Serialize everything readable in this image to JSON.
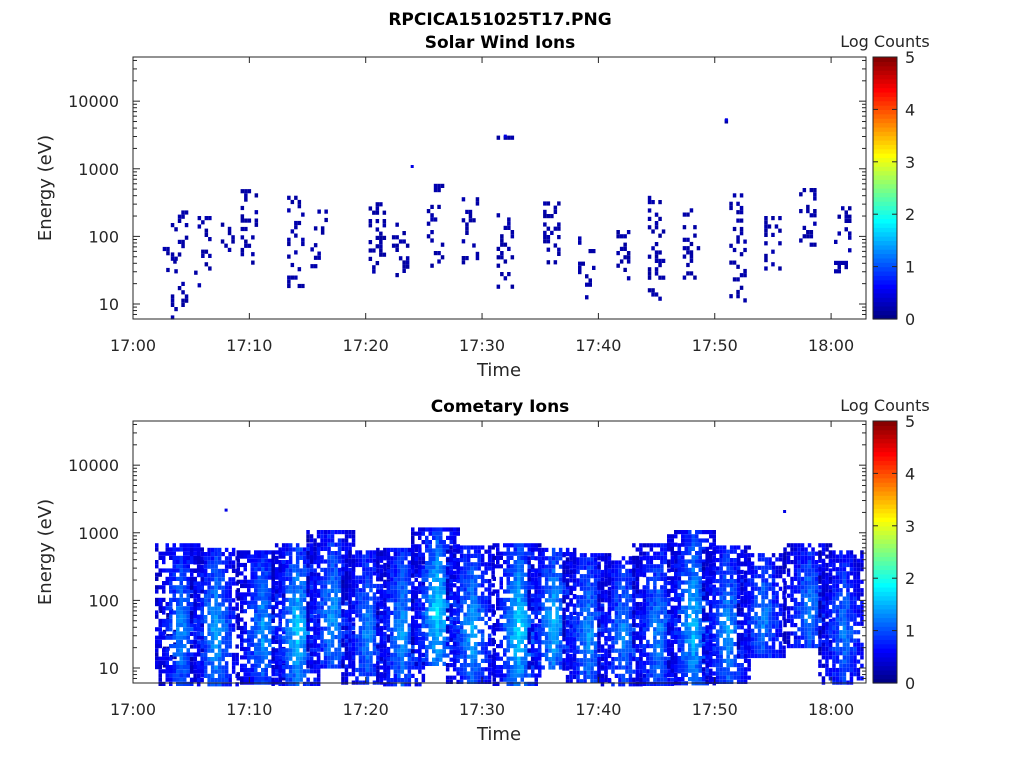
{
  "figure": {
    "title": "RPCICA151025T17.PNG"
  },
  "colormap": "jet",
  "chart_data": [
    {
      "type": "heatmap",
      "title": "Solar Wind Ions",
      "xlabel": "Time",
      "ylabel": "Energy (eV)",
      "y_scale": "log",
      "xlim": [
        "17:00",
        "18:03"
      ],
      "ylim": [
        6,
        45000
      ],
      "x_ticks": [
        "17:00",
        "17:10",
        "17:20",
        "17:30",
        "17:40",
        "17:50",
        "18:00"
      ],
      "y_ticks": [
        "10",
        "100",
        "1000",
        "10000"
      ],
      "colorbar": {
        "label": "Log Counts",
        "range": [
          0,
          5
        ],
        "ticks": [
          "0",
          "1",
          "2",
          "3",
          "4",
          "5"
        ]
      },
      "bursts": [
        {
          "t": "17:03",
          "e_min": 30,
          "e_max": 70,
          "level": 0.2
        },
        {
          "t": "17:04",
          "e_min": 6,
          "e_max": 280,
          "level": 0.3
        },
        {
          "t": "17:06",
          "e_min": 18,
          "e_max": 200,
          "level": 0.3
        },
        {
          "t": "17:08",
          "e_min": 40,
          "e_max": 160,
          "level": 0.2
        },
        {
          "t": "17:10",
          "e_min": 40,
          "e_max": 500,
          "level": 0.4
        },
        {
          "t": "17:14",
          "e_min": 18,
          "e_max": 400,
          "level": 0.5
        },
        {
          "t": "17:16",
          "e_min": 30,
          "e_max": 250,
          "level": 0.3
        },
        {
          "t": "17:21",
          "e_min": 30,
          "e_max": 320,
          "level": 0.2
        },
        {
          "t": "17:23",
          "e_min": 25,
          "e_max": 160,
          "level": 0.2
        },
        {
          "t": "17:24",
          "e_min": 1050,
          "e_max": 1100,
          "level": 0.2
        },
        {
          "t": "17:26",
          "e_min": 35,
          "e_max": 600,
          "level": 0.4
        },
        {
          "t": "17:29",
          "e_min": 40,
          "e_max": 380,
          "level": 0.4
        },
        {
          "t": "17:32",
          "e_min": 18,
          "e_max": 220,
          "level": 0.4
        },
        {
          "t": "17:32",
          "e_min": 3000,
          "e_max": 3100,
          "level": 0.2
        },
        {
          "t": "17:36",
          "e_min": 30,
          "e_max": 380,
          "level": 0.3
        },
        {
          "t": "17:39",
          "e_min": 12,
          "e_max": 100,
          "level": 0.2
        },
        {
          "t": "17:42",
          "e_min": 25,
          "e_max": 220,
          "level": 0.3
        },
        {
          "t": "17:45",
          "e_min": 12,
          "e_max": 460,
          "level": 0.4
        },
        {
          "t": "17:48",
          "e_min": 25,
          "e_max": 300,
          "level": 0.5
        },
        {
          "t": "17:51",
          "e_min": 5200,
          "e_max": 5400,
          "level": 0.2
        },
        {
          "t": "17:52",
          "e_min": 12,
          "e_max": 500,
          "level": 0.3
        },
        {
          "t": "17:55",
          "e_min": 35,
          "e_max": 200,
          "level": 0.3
        },
        {
          "t": "17:58",
          "e_min": 80,
          "e_max": 600,
          "level": 0.3
        },
        {
          "t": "18:01",
          "e_min": 30,
          "e_max": 280,
          "level": 0.3
        }
      ]
    },
    {
      "type": "heatmap",
      "title": "Cometary Ions",
      "xlabel": "Time",
      "ylabel": "Energy (eV)",
      "y_scale": "log",
      "xlim": [
        "17:00",
        "18:03"
      ],
      "ylim": [
        6,
        45000
      ],
      "x_ticks": [
        "17:00",
        "17:10",
        "17:20",
        "17:30",
        "17:40",
        "17:50",
        "18:00"
      ],
      "y_ticks": [
        "10",
        "100",
        "1000",
        "10000"
      ],
      "colorbar": {
        "label": "Log Counts",
        "range": [
          0,
          5
        ],
        "ticks": [
          "0",
          "1",
          "2",
          "3",
          "4",
          "5"
        ]
      },
      "bursts": [
        {
          "t": "17:03",
          "e_min": 10,
          "e_max": 100,
          "level": 0.2
        },
        {
          "t": "17:04",
          "e_min": 6,
          "e_max": 700,
          "level": 1.0
        },
        {
          "t": "17:07",
          "e_min": 6,
          "e_max": 600,
          "level": 1.2
        },
        {
          "t": "17:08",
          "e_min": 2100,
          "e_max": 2200,
          "level": 0.2
        },
        {
          "t": "17:11",
          "e_min": 6,
          "e_max": 550,
          "level": 1.1
        },
        {
          "t": "17:14",
          "e_min": 6,
          "e_max": 700,
          "level": 1.4
        },
        {
          "t": "17:17",
          "e_min": 10,
          "e_max": 1100,
          "level": 1.1
        },
        {
          "t": "17:20",
          "e_min": 6,
          "e_max": 550,
          "level": 1.0
        },
        {
          "t": "17:23",
          "e_min": 6,
          "e_max": 600,
          "level": 1.1
        },
        {
          "t": "17:26",
          "e_min": 12,
          "e_max": 1200,
          "level": 1.5
        },
        {
          "t": "17:29",
          "e_min": 6,
          "e_max": 650,
          "level": 1.2
        },
        {
          "t": "17:33",
          "e_min": 6,
          "e_max": 700,
          "level": 1.5
        },
        {
          "t": "17:36",
          "e_min": 10,
          "e_max": 600,
          "level": 1.3
        },
        {
          "t": "17:39",
          "e_min": 6,
          "e_max": 500,
          "level": 1.1
        },
        {
          "t": "17:42",
          "e_min": 6,
          "e_max": 450,
          "level": 1.0
        },
        {
          "t": "17:45",
          "e_min": 6,
          "e_max": 700,
          "level": 1.0
        },
        {
          "t": "17:48",
          "e_min": 6,
          "e_max": 1100,
          "level": 1.3
        },
        {
          "t": "17:51",
          "e_min": 6,
          "e_max": 650,
          "level": 1.1
        },
        {
          "t": "17:54",
          "e_min": 15,
          "e_max": 500,
          "level": 1.0
        },
        {
          "t": "17:56",
          "e_min": 2000,
          "e_max": 2100,
          "level": 0.2
        },
        {
          "t": "17:58",
          "e_min": 20,
          "e_max": 700,
          "level": 1.0
        },
        {
          "t": "18:01",
          "e_min": 6,
          "e_max": 550,
          "level": 0.9
        }
      ]
    }
  ]
}
